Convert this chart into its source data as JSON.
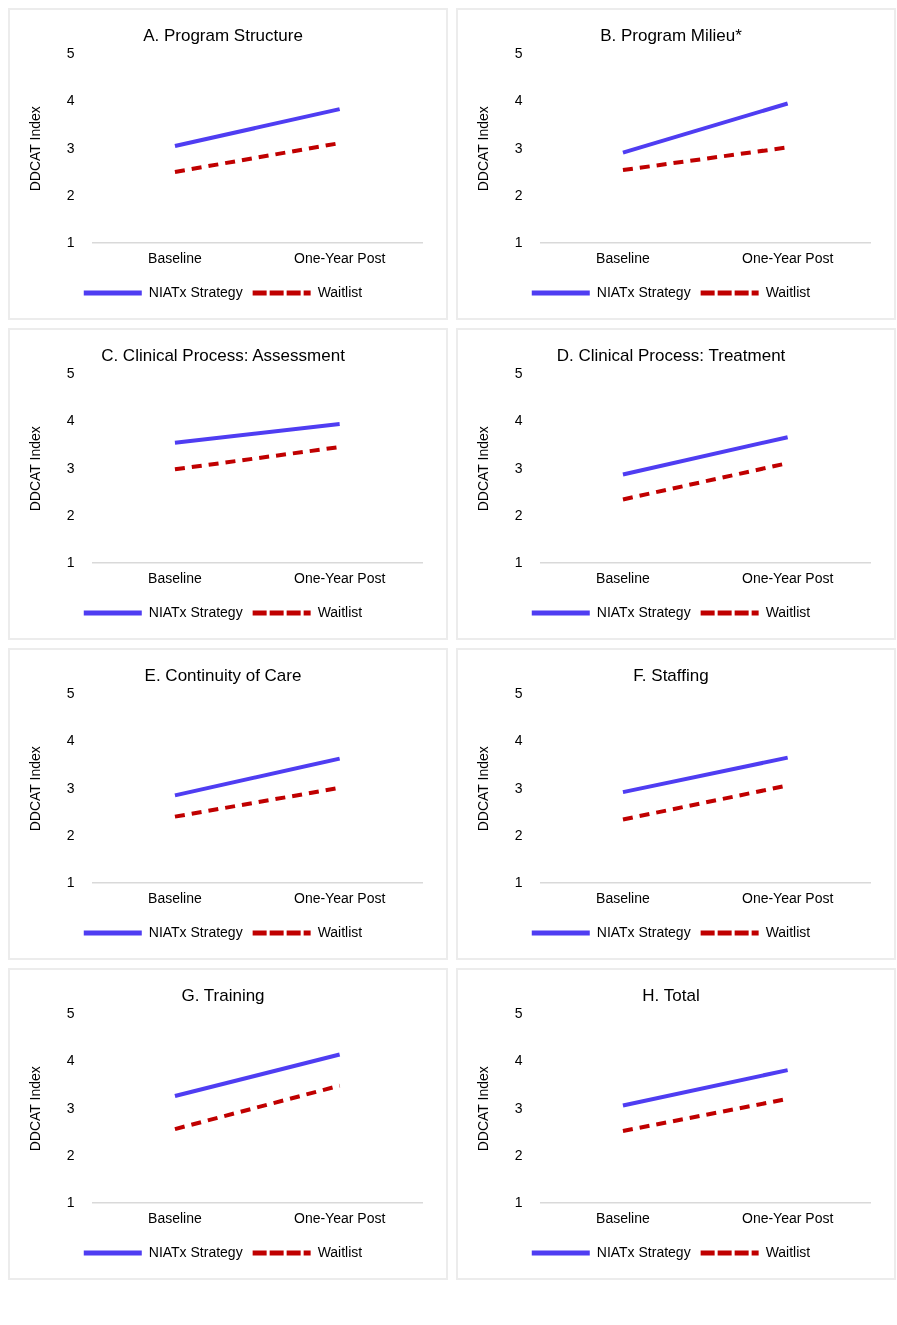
{
  "chart_data": [
    {
      "type": "line",
      "title": "A. Program Structure",
      "ylabel": "DDCAT Index",
      "categories": [
        "Baseline",
        "One-Year Post"
      ],
      "ylim": [
        1,
        5
      ],
      "yticks": [
        1,
        2,
        3,
        4,
        5
      ],
      "grid": false,
      "legend": "bottom",
      "marker": "none",
      "series": [
        {
          "name": "NIATx Strategy",
          "color": "#4f3df2",
          "line_style": "solid",
          "values": [
            3.06,
            3.84
          ]
        },
        {
          "name": "Waitlist",
          "color": "#c00000",
          "line_style": "dashed",
          "values": [
            2.51,
            3.12
          ]
        }
      ]
    },
    {
      "type": "line",
      "title": "B. Program Milieu*",
      "ylabel": "DDCAT Index",
      "categories": [
        "Baseline",
        "One-Year Post"
      ],
      "ylim": [
        1,
        5
      ],
      "yticks": [
        1,
        2,
        3,
        4,
        5
      ],
      "grid": false,
      "legend": "bottom",
      "marker": "none",
      "series": [
        {
          "name": "NIATx Strategy",
          "color": "#4f3df2",
          "line_style": "solid",
          "values": [
            2.92,
            3.96
          ]
        },
        {
          "name": "Waitlist",
          "color": "#c00000",
          "line_style": "dashed",
          "values": [
            2.55,
            3.03
          ]
        }
      ]
    },
    {
      "type": "line",
      "title": "C. Clinical Process: Assessment",
      "ylabel": "DDCAT Index",
      "categories": [
        "Baseline",
        "One-Year Post"
      ],
      "ylim": [
        1,
        5
      ],
      "yticks": [
        1,
        2,
        3,
        4,
        5
      ],
      "grid": false,
      "legend": "bottom",
      "marker": "none",
      "series": [
        {
          "name": "NIATx Strategy",
          "color": "#4f3df2",
          "line_style": "solid",
          "values": [
            3.55,
            3.95
          ]
        },
        {
          "name": "Waitlist",
          "color": "#c00000",
          "line_style": "dashed",
          "values": [
            2.99,
            3.46
          ]
        }
      ]
    },
    {
      "type": "line",
      "title": "D. Clinical Process: Treatment",
      "ylabel": "DDCAT Index",
      "categories": [
        "Baseline",
        "One-Year Post"
      ],
      "ylim": [
        1,
        5
      ],
      "yticks": [
        1,
        2,
        3,
        4,
        5
      ],
      "grid": false,
      "legend": "bottom",
      "marker": "none",
      "series": [
        {
          "name": "NIATx Strategy",
          "color": "#4f3df2",
          "line_style": "solid",
          "values": [
            2.88,
            3.67
          ]
        },
        {
          "name": "Waitlist",
          "color": "#c00000",
          "line_style": "dashed",
          "values": [
            2.35,
            3.12
          ]
        }
      ]
    },
    {
      "type": "line",
      "title": "E. Continuity of Care",
      "ylabel": "DDCAT Index",
      "categories": [
        "Baseline",
        "One-Year Post"
      ],
      "ylim": [
        1,
        5
      ],
      "yticks": [
        1,
        2,
        3,
        4,
        5
      ],
      "grid": false,
      "legend": "bottom",
      "marker": "none",
      "series": [
        {
          "name": "NIATx Strategy",
          "color": "#4f3df2",
          "line_style": "solid",
          "values": [
            2.86,
            3.64
          ]
        },
        {
          "name": "Waitlist",
          "color": "#c00000",
          "line_style": "dashed",
          "values": [
            2.41,
            3.02
          ]
        }
      ]
    },
    {
      "type": "line",
      "title": "F. Staffing",
      "ylabel": "DDCAT Index",
      "categories": [
        "Baseline",
        "One-Year Post"
      ],
      "ylim": [
        1,
        5
      ],
      "yticks": [
        1,
        2,
        3,
        4,
        5
      ],
      "grid": false,
      "legend": "bottom",
      "marker": "none",
      "series": [
        {
          "name": "NIATx Strategy",
          "color": "#4f3df2",
          "line_style": "solid",
          "values": [
            2.93,
            3.66
          ]
        },
        {
          "name": "Waitlist",
          "color": "#c00000",
          "line_style": "dashed",
          "values": [
            2.35,
            3.07
          ]
        }
      ]
    },
    {
      "type": "line",
      "title": "G. Training",
      "ylabel": "DDCAT Index",
      "categories": [
        "Baseline",
        "One-Year Post"
      ],
      "ylim": [
        1,
        5
      ],
      "yticks": [
        1,
        2,
        3,
        4,
        5
      ],
      "grid": false,
      "legend": "bottom",
      "marker": "none",
      "series": [
        {
          "name": "NIATx Strategy",
          "color": "#4f3df2",
          "line_style": "solid",
          "values": [
            3.27,
            4.15
          ]
        },
        {
          "name": "Waitlist",
          "color": "#c00000",
          "line_style": "dashed",
          "values": [
            2.57,
            3.49
          ]
        }
      ]
    },
    {
      "type": "line",
      "title": "H. Total",
      "ylabel": "DDCAT Index",
      "categories": [
        "Baseline",
        "One-Year Post"
      ],
      "ylim": [
        1,
        5
      ],
      "yticks": [
        1,
        2,
        3,
        4,
        5
      ],
      "grid": false,
      "legend": "bottom",
      "marker": "none",
      "series": [
        {
          "name": "NIATx Strategy",
          "color": "#4f3df2",
          "line_style": "solid",
          "values": [
            3.07,
            3.82
          ]
        },
        {
          "name": "Waitlist",
          "color": "#c00000",
          "line_style": "dashed",
          "values": [
            2.53,
            3.21
          ]
        }
      ]
    }
  ]
}
